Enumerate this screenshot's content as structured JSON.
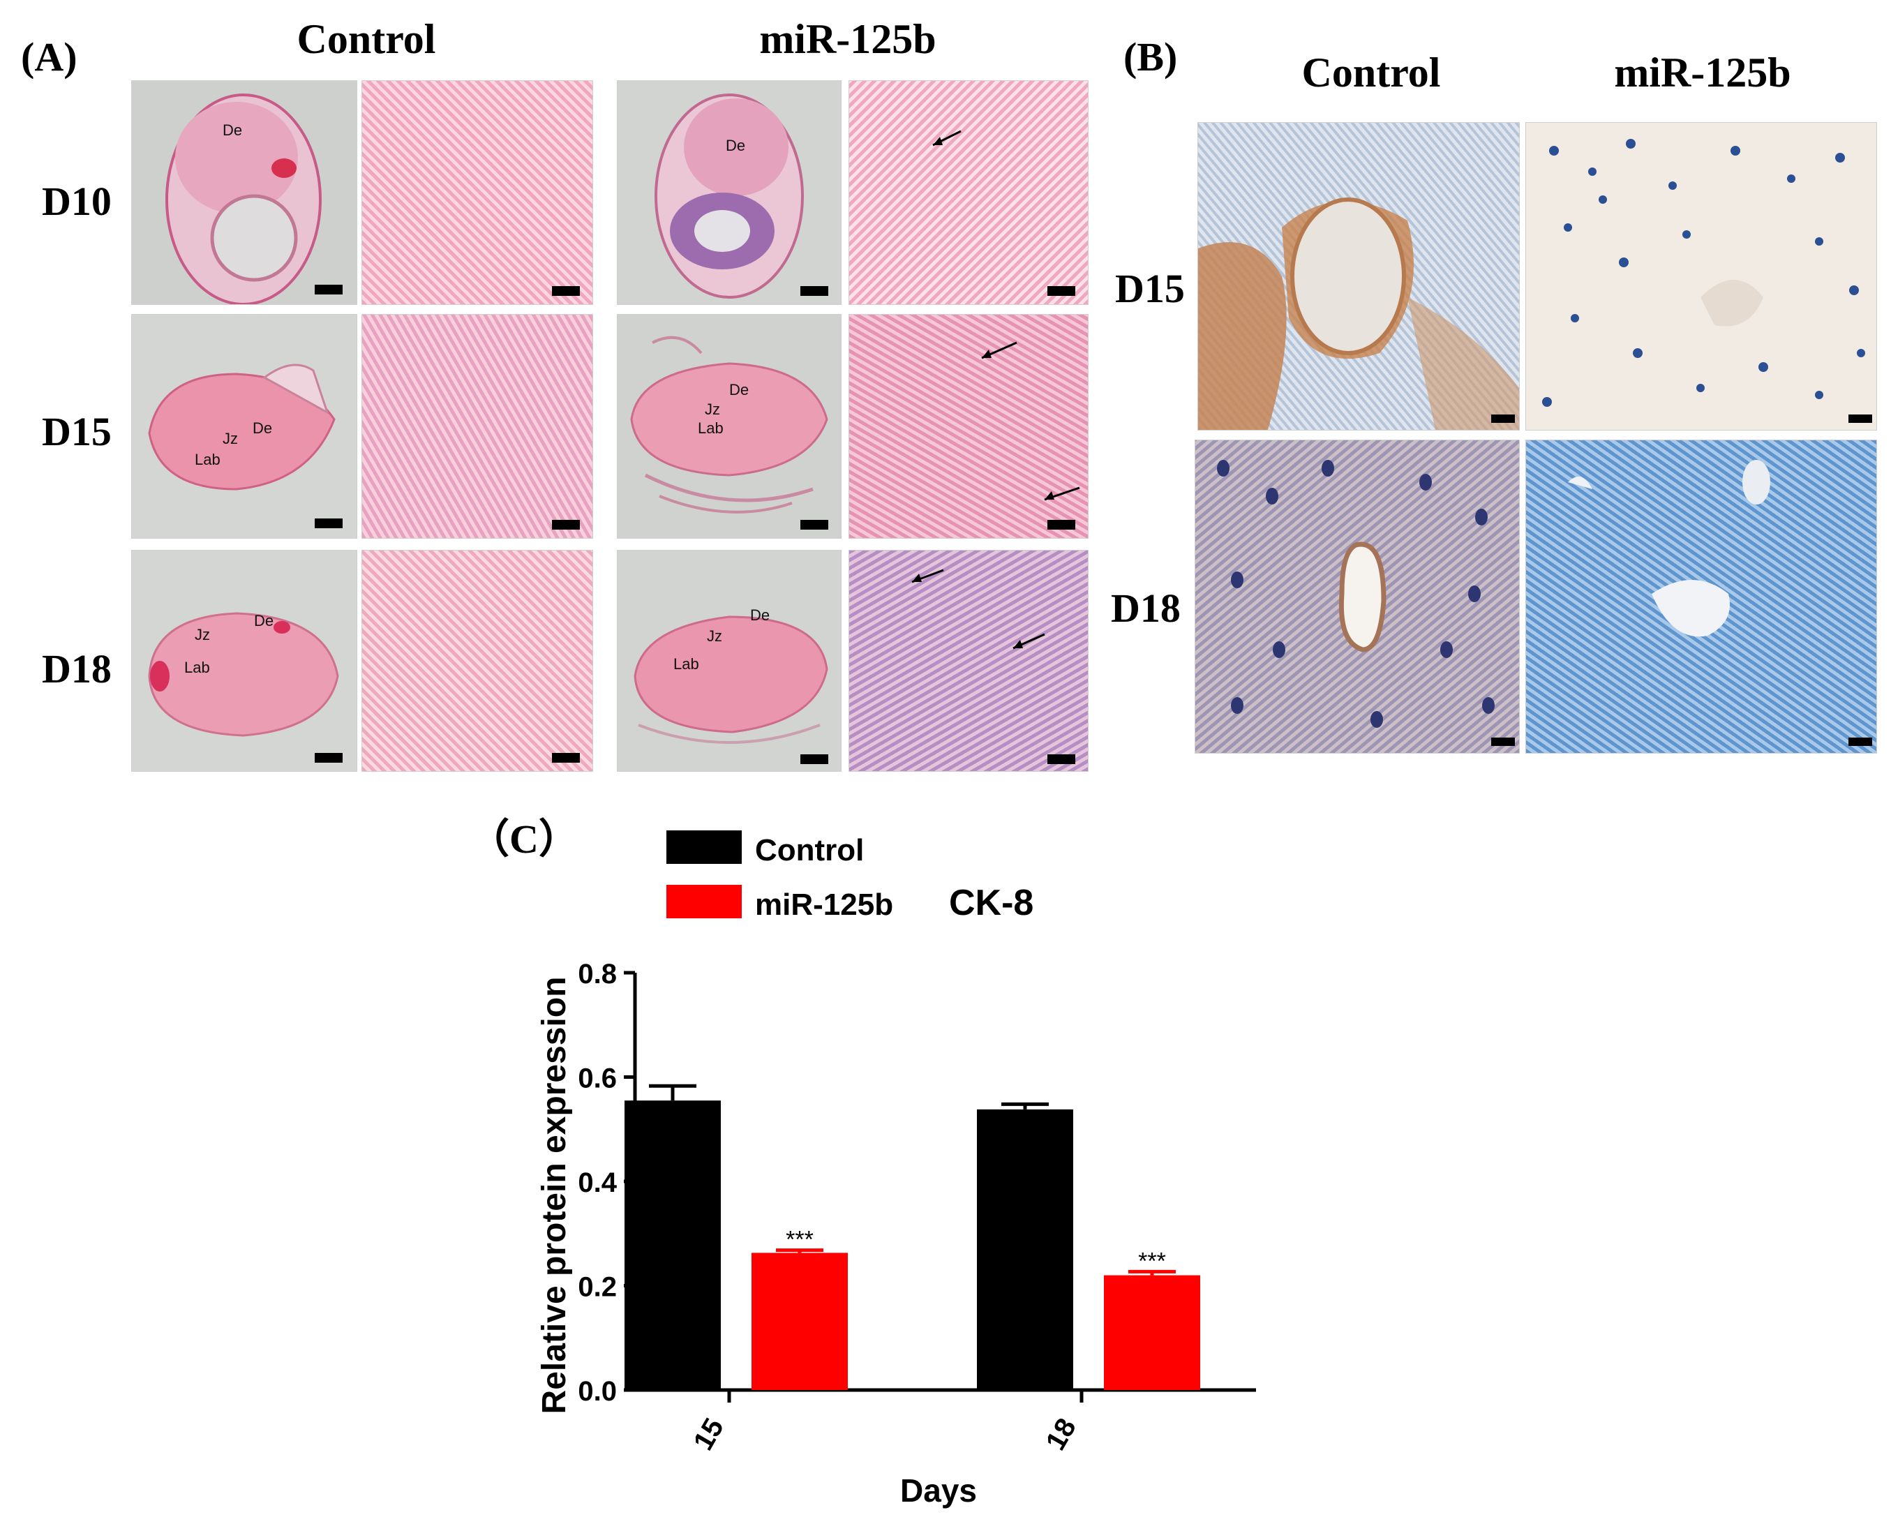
{
  "panel_a": {
    "label": "(A)",
    "col_control": "Control",
    "col_mir": "miR-125b",
    "rows": [
      {
        "label": "D10",
        "control_tissue": [
          "De"
        ],
        "mir_tissue": [
          "De"
        ]
      },
      {
        "label": "D15",
        "control_tissue": [
          "Jz",
          "De",
          "Lab"
        ],
        "mir_tissue": [
          "De",
          "Jz",
          "Lab"
        ]
      },
      {
        "label": "D18",
        "control_tissue": [
          "Jz",
          "De",
          "Lab"
        ],
        "mir_tissue": [
          "De",
          "Jz",
          "Lab"
        ]
      }
    ]
  },
  "panel_b": {
    "label": "(B)",
    "col_control": "Control",
    "col_mir": "miR-125b",
    "rows": [
      {
        "label": "D15"
      },
      {
        "label": "D18"
      }
    ]
  },
  "panel_c": {
    "label": "（C）",
    "title": "CK-8",
    "legend": [
      "Control",
      "miR-125b"
    ],
    "significance": "***"
  },
  "chart_data": {
    "type": "bar",
    "title": "CK-8",
    "xlabel": "Days",
    "ylabel": "Relative  protein  expression",
    "categories": [
      "15",
      "18"
    ],
    "ylim": [
      0,
      0.8
    ],
    "yticks": [
      "0.0",
      "0.2",
      "0.4",
      "0.6",
      "0.8"
    ],
    "series": [
      {
        "name": "Control",
        "color": "#000000",
        "values": [
          0.555,
          0.538
        ],
        "errors": [
          0.028,
          0.01
        ]
      },
      {
        "name": "miR-125b",
        "color": "#ff0000",
        "values": [
          0.263,
          0.22
        ],
        "errors": [
          0.005,
          0.007
        ]
      }
    ],
    "annotations": [
      "***",
      "***"
    ],
    "legend_position": "top-left"
  }
}
